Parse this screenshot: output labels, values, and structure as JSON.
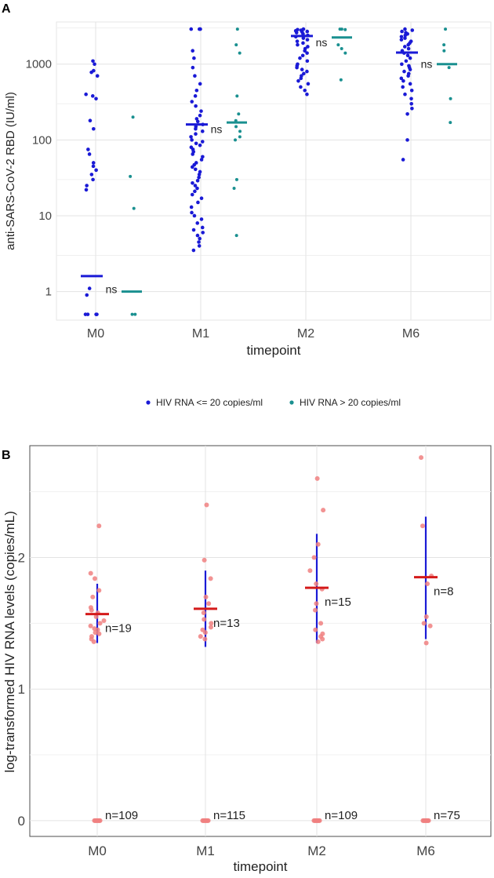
{
  "chart_data": [
    {
      "panel_label": "A",
      "type": "scatter",
      "yscale": "log10",
      "xlabel": "timepoint",
      "ylabel": "anti-SARS-CoV-2 RBD (IU/ml)",
      "categories": [
        "M0",
        "M1",
        "M2",
        "M6"
      ],
      "ylim": [
        0.42,
        3600
      ],
      "yticks": [
        1,
        10,
        100,
        1000
      ],
      "ytick_labels": [
        "1",
        "10",
        "100",
        "1000"
      ],
      "grid": true,
      "legend": {
        "position": "bottom",
        "entries": [
          "HIV RNA <= 20 copies/ml",
          "HIV RNA > 20 copies/ml"
        ]
      },
      "colors": {
        "low": "#1a1ad6",
        "high": "#1a9090"
      },
      "annotation_text": "ns",
      "series": [
        {
          "name": "HIV RNA <= 20 copies/ml",
          "color": "#1a1ad6",
          "medians": [
            1.6,
            160,
            2350,
            1420
          ],
          "points": [
            [
              1100,
              1000,
              820,
              780,
              700,
              400,
              380,
              350,
              180,
              140,
              75,
              65,
              50,
              45,
              40,
              35,
              30,
              25,
              22,
              1.1,
              0.9,
              0.5,
              0.5,
              0.5,
              0.5
            ],
            [
              2900,
              2900,
              2900,
              1500,
              1200,
              900,
              700,
              550,
              450,
              380,
              320,
              280,
              240,
              210,
              190,
              175,
              160,
              150,
              140,
              130,
              120,
              110,
              100,
              95,
              90,
              85,
              80,
              75,
              70,
              65,
              60,
              55,
              50,
              47,
              44,
              41,
              38,
              35,
              32,
              29,
              27,
              25,
              23,
              21,
              19,
              17,
              15,
              13,
              11,
              10,
              9,
              8,
              7,
              6.5,
              6,
              5.5,
              5,
              4.5,
              4,
              3.5
            ],
            [
              2900,
              2850,
              2800,
              2750,
              2700,
              2650,
              2600,
              2500,
              2400,
              2300,
              2200,
              2100,
              2000,
              1900,
              1800,
              1700,
              1600,
              1500,
              1400,
              1300,
              1200,
              1100,
              1000,
              950,
              900,
              850,
              800,
              750,
              700,
              650,
              600,
              550,
              500,
              450,
              400
            ],
            [
              2900,
              2800,
              2700,
              2600,
              2500,
              2400,
              2300,
              2200,
              2100,
              2000,
              1900,
              1800,
              1700,
              1600,
              1500,
              1400,
              1300,
              1200,
              1100,
              1000,
              950,
              900,
              850,
              800,
              750,
              700,
              650,
              600,
              550,
              500,
              450,
              400,
              350,
              300,
              260,
              220,
              100,
              55
            ]
          ]
        },
        {
          "name": "HIV RNA > 20 copies/ml",
          "color": "#1a9090",
          "medians": [
            1.0,
            170,
            2250,
            1000
          ],
          "points": [
            [
              200,
              33,
              12.5,
              0.5,
              0.5
            ],
            [
              2900,
              1800,
              1400,
              380,
              220,
              180,
              150,
              130,
              110,
              100,
              30,
              23,
              5.5
            ],
            [
              2900,
              2900,
              2850,
              1800,
              1600,
              1400,
              620
            ],
            [
              2900,
              1800,
              1500,
              900,
              350,
              170
            ]
          ]
        }
      ]
    },
    {
      "panel_label": "B",
      "type": "scatter",
      "xlabel": "timepoint",
      "ylabel": "log-transformed HIV RNA levels (copies/mL)",
      "categories": [
        "M0",
        "M1",
        "M2",
        "M6"
      ],
      "ylim": [
        -0.12,
        2.85
      ],
      "yticks": [
        0,
        1,
        2
      ],
      "ytick_labels": [
        "0",
        "1",
        "2"
      ],
      "grid": true,
      "colors": {
        "points": "#f08080",
        "mean": "#d41a1a",
        "range": "#1a1ad6"
      },
      "means": [
        1.57,
        1.61,
        1.77,
        1.85
      ],
      "ranges": [
        [
          1.35,
          1.8
        ],
        [
          1.32,
          1.9
        ],
        [
          1.35,
          2.18
        ],
        [
          1.38,
          2.31
        ]
      ],
      "counts_positive": [
        "n=19",
        "n=13",
        "n=15",
        "n=8"
      ],
      "counts_zero": [
        "n=109",
        "n=115",
        "n=109",
        "n=75"
      ],
      "points": [
        [
          2.24,
          1.88,
          1.84,
          1.75,
          1.7,
          1.62,
          1.6,
          1.58,
          1.55,
          1.52,
          1.5,
          1.48,
          1.46,
          1.45,
          1.43,
          1.42,
          1.4,
          1.38,
          1.36
        ],
        [
          2.4,
          1.98,
          1.84,
          1.7,
          1.65,
          1.58,
          1.53,
          1.5,
          1.47,
          1.45,
          1.43,
          1.4,
          1.38
        ],
        [
          2.6,
          2.36,
          2.1,
          2.0,
          1.9,
          1.8,
          1.76,
          1.65,
          1.6,
          1.5,
          1.45,
          1.42,
          1.4,
          1.38,
          1.36
        ],
        [
          2.76,
          2.24,
          1.86,
          1.8,
          1.55,
          1.5,
          1.48,
          1.35
        ]
      ]
    }
  ]
}
